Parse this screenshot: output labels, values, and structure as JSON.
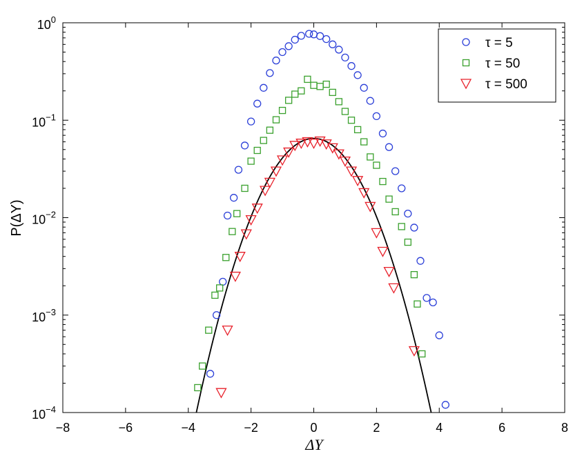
{
  "chart_data": {
    "type": "scatter",
    "xlabel": "ΔY",
    "ylabel": "P(ΔY)",
    "xlim": [
      -8,
      8
    ],
    "ylim": [
      0.0001,
      1
    ],
    "yscale": "log",
    "xticks": [
      -8,
      -6,
      -4,
      -2,
      0,
      2,
      4,
      6,
      8
    ],
    "xtick_labels": [
      "−8",
      "−6",
      "−4",
      "−2",
      "0",
      "2",
      "4",
      "6",
      "8"
    ],
    "yticks": [
      0.0001,
      0.001,
      0.01,
      0.1,
      1
    ],
    "ytick_base": "10",
    "ytick_exponents": [
      "−4",
      "−3",
      "−2",
      "−1",
      "0"
    ],
    "legend_position": "top-right",
    "series": [
      {
        "name": "τ = 5",
        "marker": "circle",
        "color": "#2b3fd8",
        "points": [
          [
            -3.3,
            0.00025
          ],
          [
            -3.1,
            0.001
          ],
          [
            -2.9,
            0.0022
          ],
          [
            -2.75,
            0.0105
          ],
          [
            -2.55,
            0.016
          ],
          [
            -2.4,
            0.031
          ],
          [
            -2.2,
            0.055
          ],
          [
            -2.0,
            0.097
          ],
          [
            -1.8,
            0.148
          ],
          [
            -1.6,
            0.215
          ],
          [
            -1.4,
            0.305
          ],
          [
            -1.2,
            0.41
          ],
          [
            -1.0,
            0.5
          ],
          [
            -0.8,
            0.575
          ],
          [
            -0.6,
            0.67
          ],
          [
            -0.4,
            0.735
          ],
          [
            -0.15,
            0.77
          ],
          [
            0.0,
            0.76
          ],
          [
            0.2,
            0.73
          ],
          [
            0.4,
            0.68
          ],
          [
            0.6,
            0.6
          ],
          [
            0.8,
            0.53
          ],
          [
            1.0,
            0.44
          ],
          [
            1.2,
            0.36
          ],
          [
            1.4,
            0.29
          ],
          [
            1.6,
            0.215
          ],
          [
            1.8,
            0.158
          ],
          [
            2.0,
            0.11
          ],
          [
            2.2,
            0.073
          ],
          [
            2.4,
            0.053
          ],
          [
            2.6,
            0.03
          ],
          [
            2.8,
            0.02
          ],
          [
            3.0,
            0.011
          ],
          [
            3.2,
            0.0079
          ],
          [
            3.4,
            0.0036
          ],
          [
            3.6,
            0.0015
          ],
          [
            3.8,
            0.00135
          ],
          [
            4.0,
            0.00062
          ],
          [
            4.2,
            0.00012
          ]
        ]
      },
      {
        "name": "τ = 50",
        "marker": "square",
        "color": "#39a02c",
        "points": [
          [
            -3.7,
            0.00018
          ],
          [
            -3.55,
            0.0003
          ],
          [
            -3.35,
            0.0007
          ],
          [
            -3.15,
            0.0016
          ],
          [
            -3.0,
            0.0019
          ],
          [
            -2.8,
            0.0039
          ],
          [
            -2.6,
            0.0072
          ],
          [
            -2.45,
            0.011
          ],
          [
            -2.2,
            0.02
          ],
          [
            -2.0,
            0.038
          ],
          [
            -1.8,
            0.049
          ],
          [
            -1.6,
            0.062
          ],
          [
            -1.4,
            0.079
          ],
          [
            -1.2,
            0.101
          ],
          [
            -1.0,
            0.126
          ],
          [
            -0.8,
            0.16
          ],
          [
            -0.6,
            0.185
          ],
          [
            -0.4,
            0.2
          ],
          [
            -0.2,
            0.263
          ],
          [
            0.0,
            0.228
          ],
          [
            0.2,
            0.222
          ],
          [
            0.4,
            0.234
          ],
          [
            0.6,
            0.193
          ],
          [
            0.8,
            0.155
          ],
          [
            1.0,
            0.123
          ],
          [
            1.2,
            0.1
          ],
          [
            1.4,
            0.08
          ],
          [
            1.6,
            0.06
          ],
          [
            1.8,
            0.042
          ],
          [
            2.0,
            0.0345
          ],
          [
            2.2,
            0.0235
          ],
          [
            2.4,
            0.0155
          ],
          [
            2.6,
            0.0115
          ],
          [
            2.8,
            0.0081
          ],
          [
            3.0,
            0.0056
          ],
          [
            3.2,
            0.0026
          ],
          [
            3.3,
            0.0013
          ],
          [
            3.45,
            0.0004
          ]
        ]
      },
      {
        "name": "τ = 500",
        "marker": "triangle-down",
        "color": "#e8202a",
        "points": [
          [
            -2.95,
            0.00016
          ],
          [
            -2.75,
            0.0007
          ],
          [
            -2.5,
            0.0025
          ],
          [
            -2.35,
            0.004
          ],
          [
            -2.15,
            0.0068
          ],
          [
            -2.0,
            0.0095
          ],
          [
            -1.8,
            0.0125
          ],
          [
            -1.55,
            0.019
          ],
          [
            -1.4,
            0.023
          ],
          [
            -1.2,
            0.03
          ],
          [
            -1.0,
            0.039
          ],
          [
            -0.8,
            0.047
          ],
          [
            -0.6,
            0.055
          ],
          [
            -0.4,
            0.058
          ],
          [
            -0.2,
            0.06
          ],
          [
            0.0,
            0.058
          ],
          [
            0.2,
            0.061
          ],
          [
            0.4,
            0.057
          ],
          [
            0.6,
            0.052
          ],
          [
            0.8,
            0.045
          ],
          [
            1.0,
            0.038
          ],
          [
            1.2,
            0.03
          ],
          [
            1.4,
            0.024
          ],
          [
            1.6,
            0.018
          ],
          [
            1.8,
            0.013
          ],
          [
            2.0,
            0.007
          ],
          [
            2.2,
            0.0045
          ],
          [
            2.4,
            0.0028
          ],
          [
            2.55,
            0.0019
          ],
          [
            3.2,
            0.00043
          ]
        ]
      },
      {
        "name": "",
        "marker": "line",
        "color": "#000000",
        "gaussian": {
          "amplitude": 0.065,
          "sigma": 1.04
        }
      }
    ]
  }
}
